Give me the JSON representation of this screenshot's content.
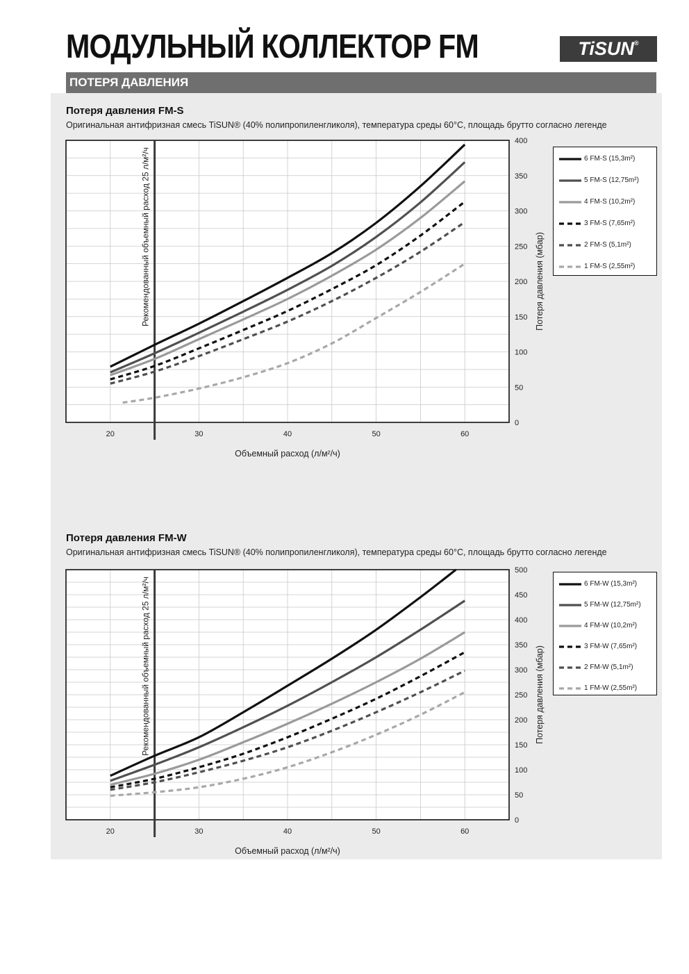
{
  "header": {
    "title": "МОДУЛЬНЫЙ КОЛЛЕКТОР FM",
    "logo_text": "TiSUN",
    "logo_mark": "®",
    "section_label": "ПОТЕРЯ ДАВЛЕНИЯ"
  },
  "chart_data": [
    {
      "type": "line",
      "title": "Потеря давления FM-S",
      "subtitle": "Оригинальная антифризная смесь TiSUN® (40% полипропиленгликоля), температура среды 60°C, площадь брутто согласно легенде",
      "xlabel": "Объемный расход (л/м²/ч)",
      "ylabel": "Потеря давления (мбар)",
      "xlim": [
        15,
        65
      ],
      "ylim": [
        0,
        400
      ],
      "xticks": [
        20,
        30,
        40,
        50,
        60
      ],
      "yticks": [
        0,
        50,
        100,
        150,
        200,
        250,
        300,
        350,
        400
      ],
      "grid": true,
      "legend_position": "right",
      "annotation": {
        "x": 25,
        "text": "Рекомендованный объемный расход 25 л/м²/ч"
      },
      "series": [
        {
          "name": "6 FM-S (15,3m²)",
          "color": "#111111",
          "dash": "solid",
          "x": [
            20,
            25,
            30,
            35,
            40,
            45,
            50,
            55,
            60
          ],
          "y": [
            79,
            110,
            140,
            172,
            205,
            240,
            283,
            335,
            394
          ]
        },
        {
          "name": "5 FM-S (12,75m²)",
          "color": "#505050",
          "dash": "solid",
          "x": [
            20,
            25,
            30,
            35,
            40,
            45,
            50,
            55,
            60
          ],
          "y": [
            71,
            98,
            127,
            157,
            188,
            222,
            263,
            312,
            369
          ]
        },
        {
          "name": "4 FM-S (10,2m²)",
          "color": "#9a9a9a",
          "dash": "solid",
          "x": [
            20,
            25,
            30,
            35,
            40,
            45,
            50,
            55,
            60
          ],
          "y": [
            67,
            90,
            118,
            146,
            175,
            208,
            245,
            290,
            342
          ]
        },
        {
          "name": "3 FM-S (7,65m²)",
          "color": "#111111",
          "dash": "dashed",
          "x": [
            20,
            25,
            30,
            35,
            40,
            45,
            50,
            55,
            60
          ],
          "y": [
            61,
            80,
            105,
            131,
            158,
            189,
            223,
            265,
            313
          ]
        },
        {
          "name": "2 FM-S (5,1m²)",
          "color": "#505050",
          "dash": "dashed",
          "x": [
            20,
            25,
            30,
            35,
            40,
            45,
            50,
            55,
            60
          ],
          "y": [
            55,
            72,
            94,
            118,
            143,
            172,
            205,
            242,
            284
          ]
        },
        {
          "name": "1 FM-S (2,55m²)",
          "color": "#a8a8a8",
          "dash": "dashed",
          "x": [
            21.4,
            25,
            30,
            35,
            40,
            45,
            50,
            55,
            60
          ],
          "y": [
            28,
            35,
            48,
            64,
            84,
            112,
            148,
            185,
            225
          ]
        }
      ]
    },
    {
      "type": "line",
      "title": "Потеря давления FM-W",
      "subtitle": "Оригинальная антифризная смесь TiSUN® (40% полипропиленгликоля), температура среды 60°C, площадь брутто согласно легенде",
      "xlabel": "Объемный расход (л/м²/ч)",
      "ylabel": "Потеря давления (мбар)",
      "xlim": [
        15,
        65
      ],
      "ylim": [
        0,
        500
      ],
      "xticks": [
        20,
        30,
        40,
        50,
        60
      ],
      "yticks": [
        0,
        50,
        100,
        150,
        200,
        250,
        300,
        350,
        400,
        450,
        500
      ],
      "grid": true,
      "legend_position": "right",
      "annotation": {
        "x": 25,
        "text": "Рекомендованный объемный расход 25 л/м²/ч"
      },
      "series": [
        {
          "name": "6 FM-W (15,3m²)",
          "color": "#111111",
          "dash": "solid",
          "x": [
            20,
            25,
            30,
            35,
            40,
            45,
            50,
            55,
            59
          ],
          "y": [
            88,
            128,
            165,
            215,
            268,
            322,
            380,
            445,
            500
          ]
        },
        {
          "name": "5 FM-W (12,75m²)",
          "color": "#505050",
          "dash": "solid",
          "x": [
            20,
            25,
            30,
            35,
            40,
            45,
            50,
            55,
            60
          ],
          "y": [
            78,
            110,
            145,
            185,
            228,
            275,
            325,
            380,
            438
          ]
        },
        {
          "name": "4 FM-W (10,2m²)",
          "color": "#9a9a9a",
          "dash": "solid",
          "x": [
            20,
            25,
            30,
            35,
            40,
            45,
            50,
            55,
            60
          ],
          "y": [
            70,
            92,
            120,
            155,
            192,
            232,
            275,
            322,
            375
          ]
        },
        {
          "name": "3 FM-W (7,65m²)",
          "color": "#111111",
          "dash": "dashed",
          "x": [
            20,
            25,
            30,
            35,
            40,
            45,
            50,
            55,
            60
          ],
          "y": [
            65,
            82,
            105,
            132,
            165,
            202,
            242,
            287,
            335
          ]
        },
        {
          "name": "2 FM-W (5,1m²)",
          "color": "#505050",
          "dash": "dashed",
          "x": [
            20,
            25,
            30,
            35,
            40,
            45,
            50,
            55,
            60
          ],
          "y": [
            60,
            75,
            95,
            118,
            145,
            178,
            215,
            255,
            298
          ]
        },
        {
          "name": "1 FM-W (2,55m²)",
          "color": "#a8a8a8",
          "dash": "dashed",
          "x": [
            20,
            25,
            30,
            35,
            40,
            45,
            50,
            55,
            60
          ],
          "y": [
            48,
            55,
            65,
            82,
            105,
            135,
            170,
            210,
            255
          ]
        }
      ]
    }
  ]
}
